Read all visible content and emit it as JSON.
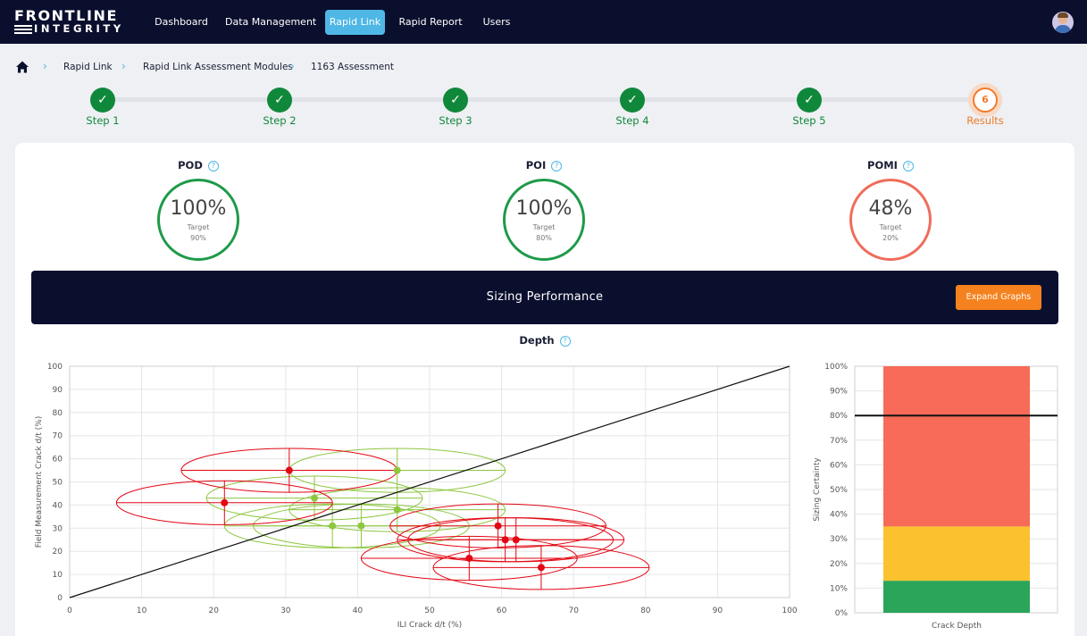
{
  "nav": {
    "logo_line1": "FRONTLINE",
    "logo_line2": "INTEGRITY",
    "items": [
      {
        "label": "Dashboard"
      },
      {
        "label": "Data Management"
      },
      {
        "label": "Rapid Link",
        "active": true
      },
      {
        "label": "Rapid Report"
      },
      {
        "label": "Users"
      }
    ]
  },
  "breadcrumb": [
    "Rapid Link",
    "Rapid Link Assessment Modules",
    "1163 Assessment"
  ],
  "steps": [
    {
      "label": "Step 1",
      "state": "done"
    },
    {
      "label": "Step 2",
      "state": "done"
    },
    {
      "label": "Step 3",
      "state": "done"
    },
    {
      "label": "Step 4",
      "state": "done"
    },
    {
      "label": "Step 5",
      "state": "done"
    },
    {
      "label": "Results",
      "number": "6",
      "state": "current"
    }
  ],
  "metrics": [
    {
      "title": "POD",
      "value": "100%",
      "target_label": "Target",
      "target": "90%",
      "status": "good"
    },
    {
      "title": "POI",
      "value": "100%",
      "target_label": "Target",
      "target": "80%",
      "status": "good"
    },
    {
      "title": "POMI",
      "value": "48%",
      "target_label": "Target",
      "target": "20%",
      "status": "bad"
    }
  ],
  "banner": {
    "title": "Sizing Performance",
    "button_label": "Expand Graphs"
  },
  "section_title": "Depth",
  "colors": {
    "good": "#1e9a48",
    "bad": "#ef6d5a",
    "accent": "#4fb7e5",
    "navy": "#0b0f2e",
    "orange": "#f5821f",
    "pass_point": "#8dc63f",
    "fail_point": "#e30613"
  },
  "chart_data": [
    {
      "type": "scatter",
      "xlabel": "ILI Crack d/t (%)",
      "ylabel": "Field Measurement Crack d/t (%)",
      "xlim": [
        0,
        100
      ],
      "ylim": [
        0,
        100
      ],
      "xticks": [
        0,
        10,
        20,
        30,
        40,
        50,
        60,
        70,
        80,
        90,
        100
      ],
      "yticks": [
        0,
        10,
        20,
        30,
        40,
        50,
        60,
        70,
        80,
        90,
        100
      ],
      "grid": true,
      "reference_line": {
        "from": [
          0,
          0
        ],
        "to": [
          100,
          100
        ]
      },
      "series": [
        {
          "status": "within",
          "color": "#8dc63f",
          "points": [
            {
              "x": 45.5,
              "y": 55,
              "ex": 15,
              "ey": 9.5
            },
            {
              "x": 34,
              "y": 43,
              "ex": 15,
              "ey": 9.5
            },
            {
              "x": 45.5,
              "y": 38,
              "ex": 15,
              "ey": 9.5
            },
            {
              "x": 36.5,
              "y": 31,
              "ex": 15,
              "ey": 9.5
            },
            {
              "x": 40.5,
              "y": 31,
              "ex": 15,
              "ey": 9.5
            }
          ]
        },
        {
          "status": "outside",
          "color": "#e30613",
          "points": [
            {
              "x": 30.5,
              "y": 55,
              "ex": 15,
              "ey": 9.5
            },
            {
              "x": 21.5,
              "y": 41,
              "ex": 15,
              "ey": 9.5
            },
            {
              "x": 59.5,
              "y": 31,
              "ex": 15,
              "ey": 9.5
            },
            {
              "x": 60.5,
              "y": 25,
              "ex": 15,
              "ey": 9.5
            },
            {
              "x": 62,
              "y": 25,
              "ex": 15,
              "ey": 9.5
            },
            {
              "x": 55.5,
              "y": 17,
              "ex": 15,
              "ey": 9.5
            },
            {
              "x": 65.5,
              "y": 13,
              "ex": 15,
              "ey": 9.5
            }
          ]
        }
      ]
    },
    {
      "type": "bar",
      "stacked": true,
      "categories": [
        "Crack Depth"
      ],
      "ylabel": "Sizing Certainty",
      "ylim": [
        0,
        100
      ],
      "yticks": [
        0,
        10,
        20,
        30,
        40,
        50,
        60,
        70,
        80,
        90,
        100
      ],
      "tick_suffix": "%",
      "target_line": 80,
      "series": [
        {
          "values": [
            13
          ],
          "color": "#2ba55a"
        },
        {
          "values": [
            22
          ],
          "color": "#fcc12e"
        },
        {
          "values": [
            65
          ],
          "color": "#f76b58"
        }
      ]
    }
  ]
}
